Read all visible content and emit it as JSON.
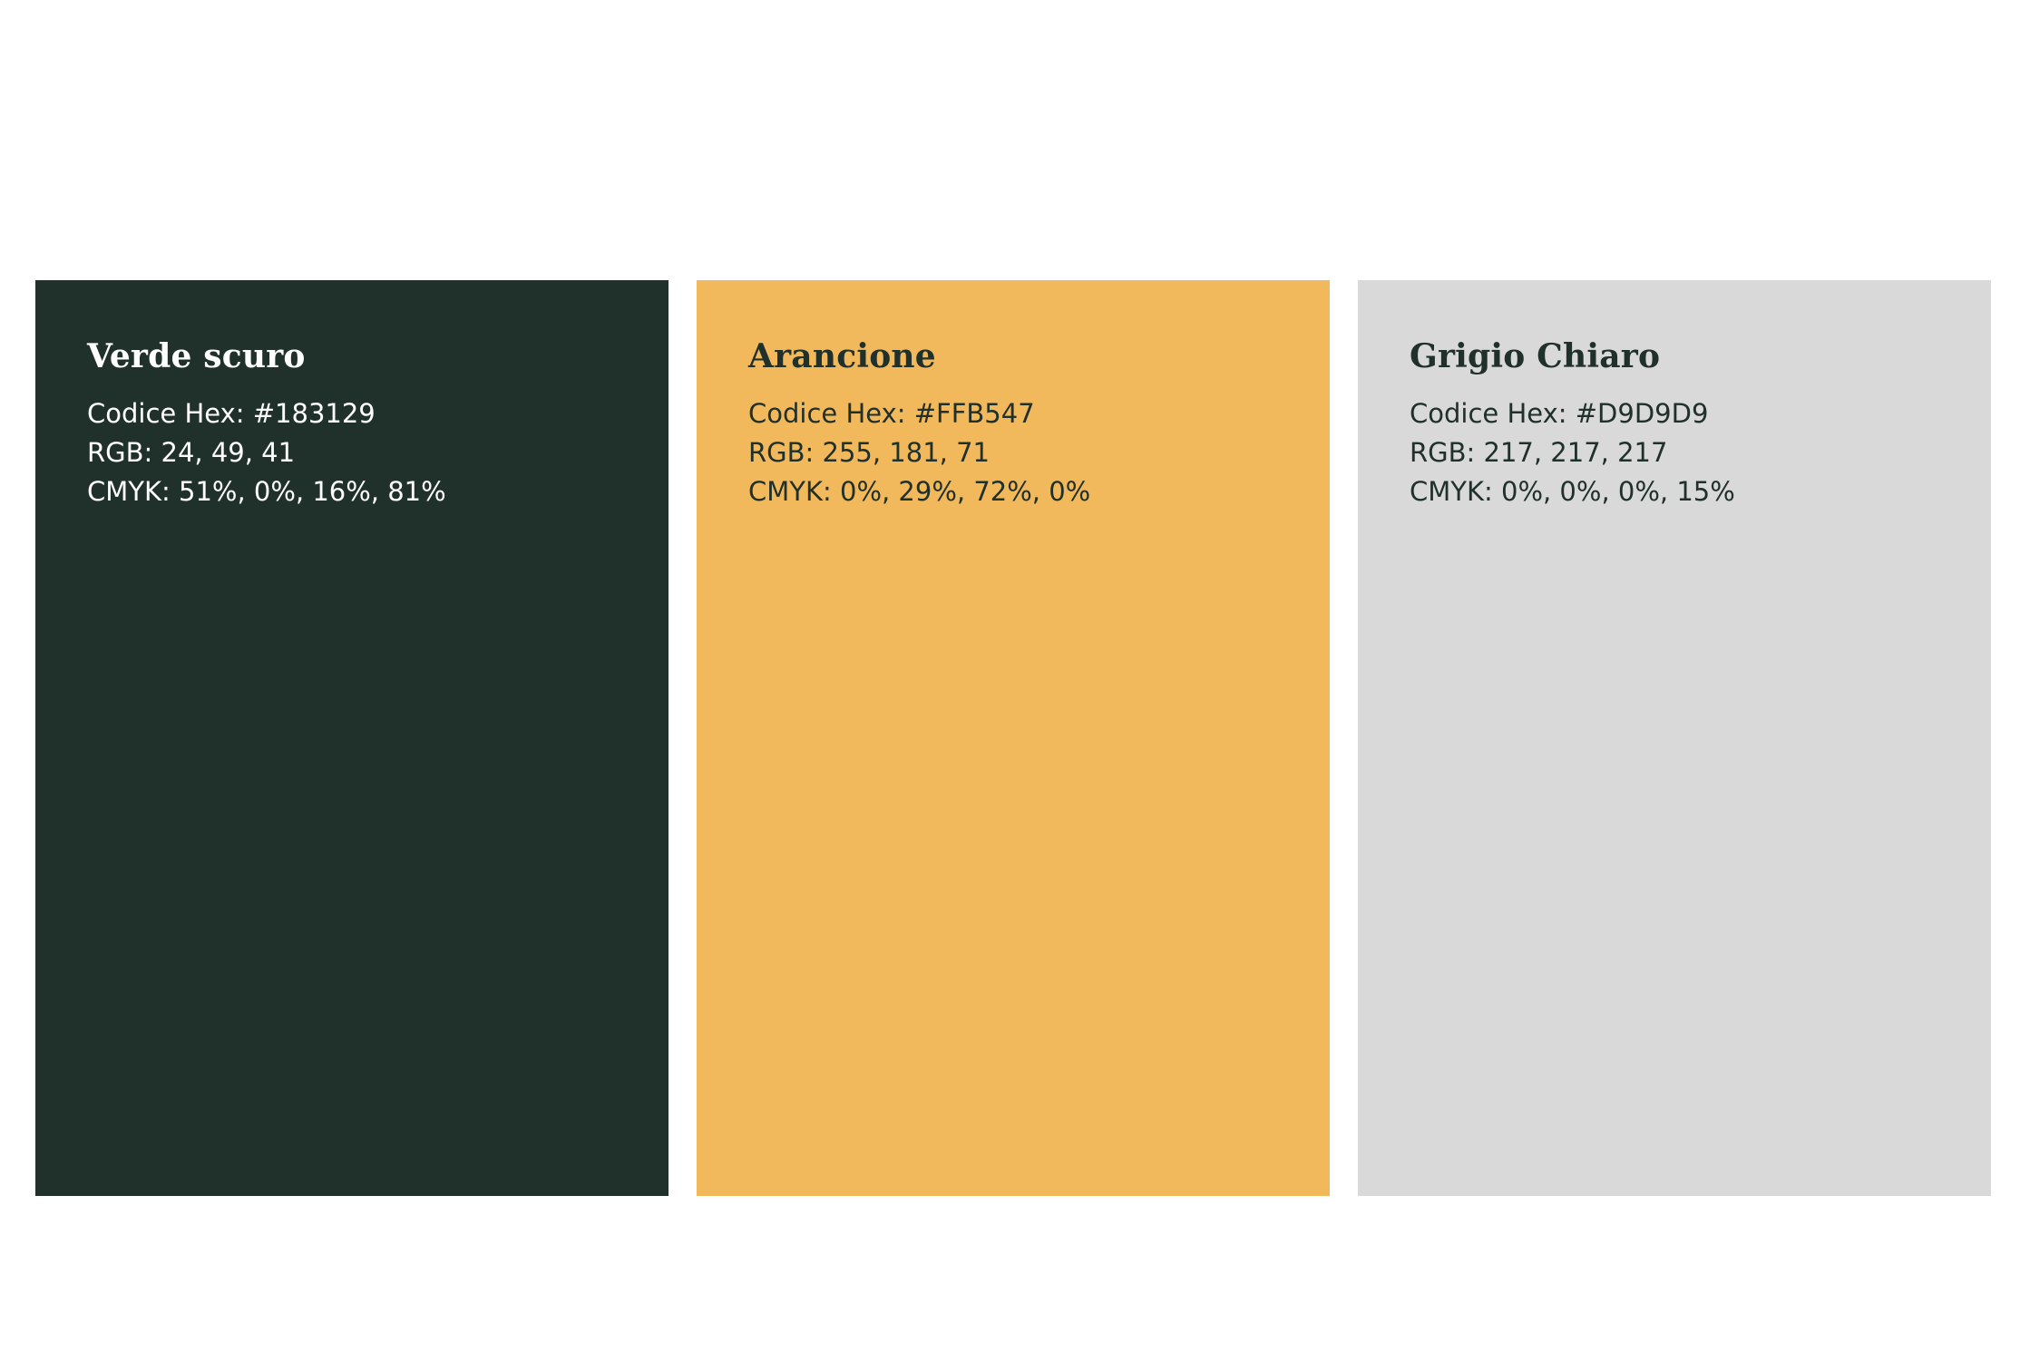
{
  "swatches": [
    {
      "name": "Verde scuro",
      "hex_line": "Codice Hex: #183129",
      "rgb_line": "RGB: 24, 49, 41",
      "cmyk_line": "CMYK: 51%, 0%, 16%, 81%",
      "fill_color": "#20302B",
      "text_color": "#FFFFFF"
    },
    {
      "name": "Arancione",
      "hex_line": "Codice Hex: #FFB547",
      "rgb_line": "RGB: 255, 181, 71",
      "cmyk_line": "CMYK: 0%, 29%, 72%, 0%",
      "fill_color": "#F2B85C",
      "text_color": "#20302B"
    },
    {
      "name": "Grigio Chiaro",
      "hex_line": "Codice Hex: #D9D9D9",
      "rgb_line": "RGB: 217, 217, 217",
      "cmyk_line": "CMYK: 0%, 0%, 0%, 15%",
      "fill_color": "#D9D9D9",
      "text_color": "#20302B"
    }
  ]
}
